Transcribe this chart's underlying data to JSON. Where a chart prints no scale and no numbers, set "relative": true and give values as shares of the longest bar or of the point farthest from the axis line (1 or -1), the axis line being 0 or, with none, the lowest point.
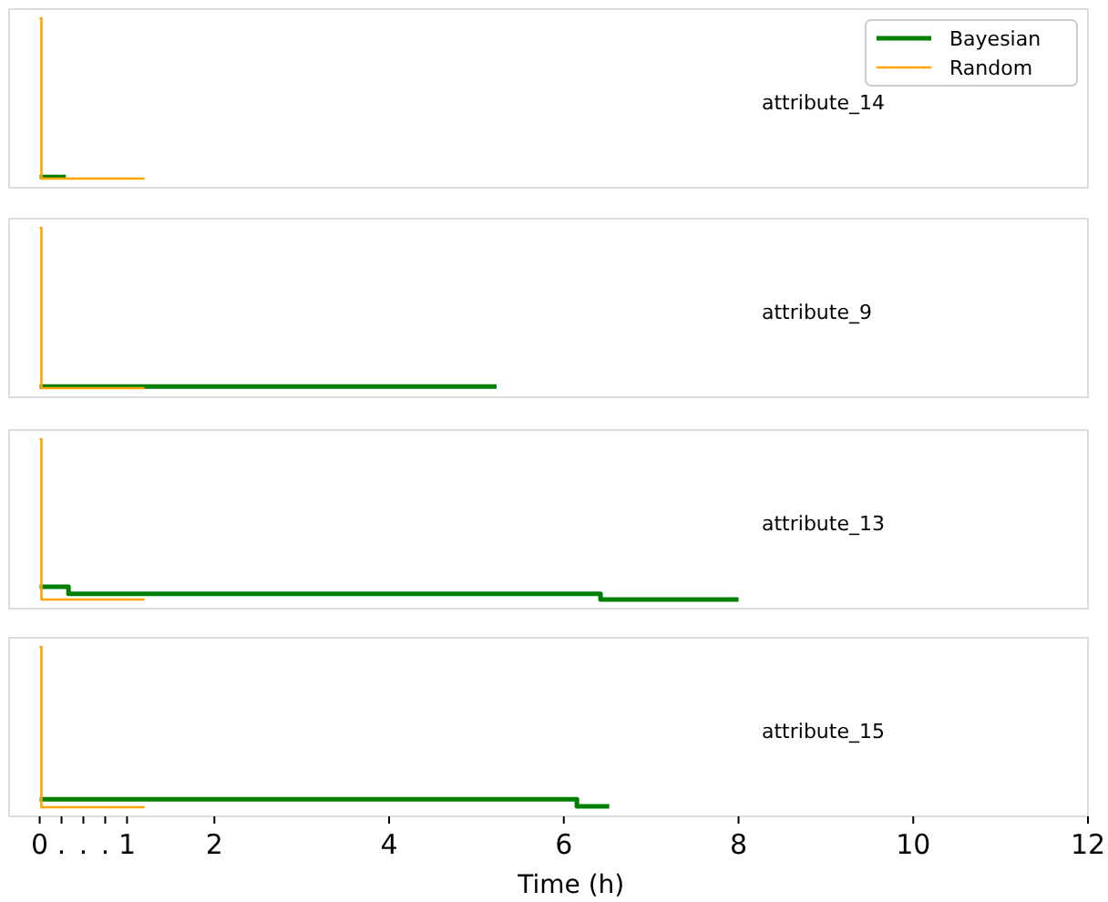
{
  "chart_data": [
    {
      "type": "step",
      "relative": true,
      "xlim": [
        -0.35,
        12
      ],
      "tick_labels": false,
      "legend": "top right",
      "annotations": [
        "attribute_14"
      ],
      "series": [
        {
          "name": "Bayesian",
          "color": "#008000",
          "x": [
            0,
            0.3
          ],
          "values": [
            0.01,
            0.01
          ]
        },
        {
          "name": "Random",
          "color": "#ffa500",
          "x": [
            0,
            0.02,
            1.2
          ],
          "values": [
            1,
            0,
            0
          ]
        }
      ]
    },
    {
      "type": "step",
      "relative": true,
      "xlim": [
        -0.35,
        12
      ],
      "tick_labels": false,
      "annotations": [
        "attribute_9"
      ],
      "series": [
        {
          "color": "#008000",
          "x": [
            0,
            5.23
          ],
          "values": [
            0.01,
            0.01
          ]
        },
        {
          "color": "#ffa500",
          "x": [
            0,
            0.02,
            1.2
          ],
          "values": [
            1,
            0,
            0
          ]
        }
      ]
    },
    {
      "type": "step",
      "relative": true,
      "xlim": [
        -0.35,
        12
      ],
      "tick_labels": false,
      "annotations": [
        "attribute_13"
      ],
      "series": [
        {
          "color": "#008000",
          "x": [
            0,
            0.33,
            6.42,
            8.0
          ],
          "values": [
            0.08,
            0.035,
            0.0,
            0.0
          ]
        },
        {
          "color": "#ffa500",
          "x": [
            0,
            0.02,
            1.2
          ],
          "values": [
            1,
            0,
            0
          ]
        }
      ]
    },
    {
      "type": "step",
      "relative": true,
      "xlim": [
        -0.35,
        12
      ],
      "tick_labels": "x",
      "xlabel": "Time (h)",
      "annotations": [
        "attribute_15"
      ],
      "xticks": [
        0,
        {
          "value": 0.25,
          "label": "."
        },
        {
          "value": 0.5,
          "label": "."
        },
        {
          "value": 0.75,
          "label": "."
        },
        1,
        2,
        4,
        6,
        8,
        10,
        12
      ],
      "series": [
        {
          "color": "#008000",
          "x": [
            0,
            6.15,
            6.52
          ],
          "values": [
            0.05,
            0.005,
            0.005
          ]
        },
        {
          "color": "#ffa500",
          "x": [
            0,
            0.02,
            1.2
          ],
          "values": [
            1,
            0,
            0
          ]
        }
      ]
    }
  ]
}
